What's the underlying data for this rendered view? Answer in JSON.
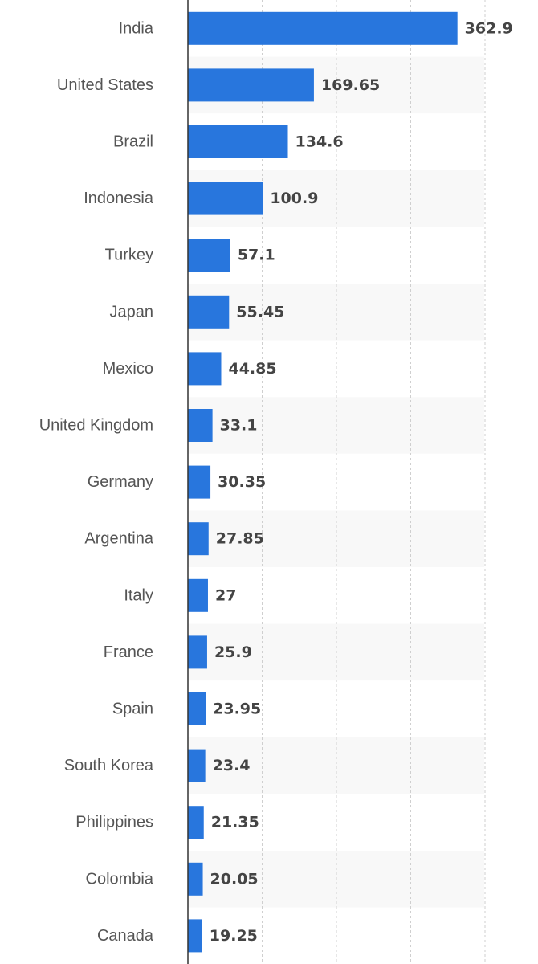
{
  "chart_data": {
    "type": "bar",
    "orientation": "horizontal",
    "categories": [
      "India",
      "United States",
      "Brazil",
      "Indonesia",
      "Turkey",
      "Japan",
      "Mexico",
      "United Kingdom",
      "Germany",
      "Argentina",
      "Italy",
      "France",
      "Spain",
      "South Korea",
      "Philippines",
      "Colombia",
      "Canada"
    ],
    "values": [
      362.9,
      169.65,
      134.6,
      100.9,
      57.1,
      55.45,
      44.85,
      33.1,
      30.35,
      27.85,
      27,
      25.9,
      23.95,
      23.4,
      21.35,
      20.05,
      19.25
    ],
    "value_labels": [
      "362.9",
      "169.65",
      "134.6",
      "100.9",
      "57.1",
      "55.45",
      "44.85",
      "33.1",
      "30.35",
      "27.85",
      "27",
      "25.9",
      "23.95",
      "23.4",
      "21.35",
      "20.05",
      "19.25"
    ],
    "xlim": [
      0,
      400
    ],
    "x_gridlines": [
      100,
      200,
      300,
      400
    ],
    "grid": true,
    "legend": "none",
    "title": "",
    "xlabel": "",
    "ylabel": "",
    "colors": {
      "bar": "#2876dd",
      "band_alt": "#f8f8f8",
      "grid": "#cfcfcf",
      "axis": "#333333"
    }
  }
}
